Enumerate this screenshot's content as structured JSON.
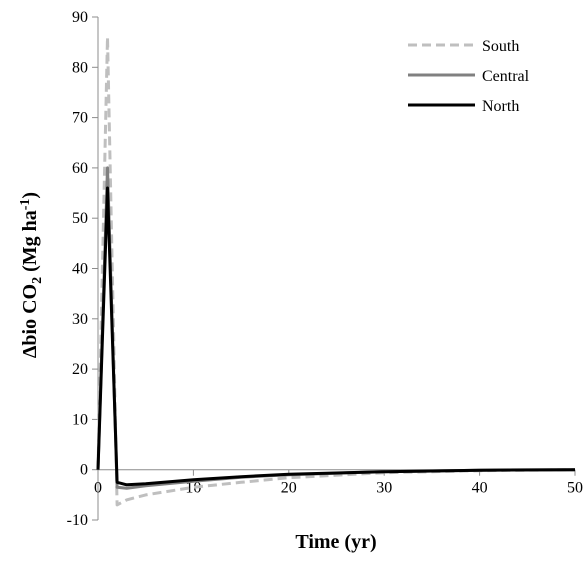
{
  "chart_data": {
    "type": "line",
    "title": "",
    "xlabel": "Time (yr)",
    "ylabel": {
      "prefix": "Δbio CO",
      "sub": "2",
      "units": " (Mg ha",
      "sup": "-1",
      "close": ")"
    },
    "xlim": [
      0,
      50
    ],
    "ylim": [
      -10,
      90
    ],
    "xticks": [
      0,
      10,
      20,
      30,
      40,
      50
    ],
    "yticks": [
      -10,
      0,
      10,
      20,
      30,
      40,
      50,
      60,
      70,
      80,
      90
    ],
    "grid": false,
    "legend_position": "top-right",
    "series": [
      {
        "name": "South",
        "color": "#bfbfbf",
        "dash": "dashed",
        "x": [
          0,
          1,
          2,
          3,
          5,
          10,
          15,
          20,
          30,
          40,
          50
        ],
        "y": [
          0,
          86,
          -7,
          -6,
          -5,
          -3.5,
          -2.5,
          -1.6,
          -0.6,
          -0.2,
          0
        ]
      },
      {
        "name": "Central",
        "color": "#808080",
        "dash": "solid",
        "x": [
          0,
          1,
          2,
          3,
          5,
          10,
          15,
          20,
          30,
          40,
          50
        ],
        "y": [
          0,
          60,
          -3.5,
          -3.7,
          -3.2,
          -2.3,
          -1.5,
          -1,
          -0.4,
          -0.1,
          0
        ]
      },
      {
        "name": "North",
        "color": "#000000",
        "dash": "solid",
        "x": [
          0,
          1,
          2,
          3,
          5,
          10,
          15,
          20,
          30,
          40,
          50
        ],
        "y": [
          0,
          56,
          -2.5,
          -3,
          -2.8,
          -2,
          -1.4,
          -0.9,
          -0.4,
          -0.1,
          0
        ]
      }
    ]
  }
}
